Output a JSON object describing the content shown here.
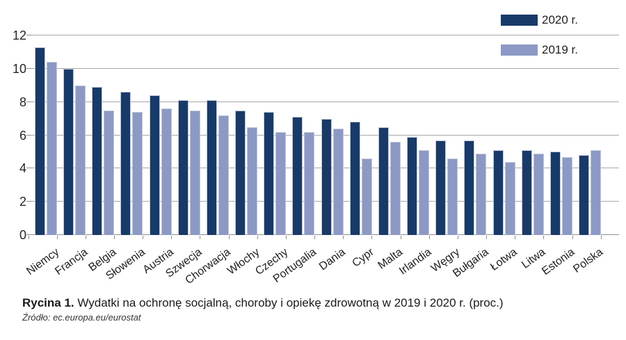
{
  "figure": {
    "caption_label": "Rycina 1.",
    "caption_text": " Wydatki na ochronę socjalną, choroby i opiekę zdrowotną w 2019 i 2020 r. (proc.)",
    "source": "Źródło: ec.europa.eu/eurostat"
  },
  "chart_data": {
    "type": "bar",
    "title": "",
    "xlabel": "",
    "ylabel": "",
    "categories": [
      "Niemcy",
      "Francja",
      "Belgia",
      "Słowenia",
      "Austria",
      "Szwecja",
      "Chorwacja",
      "Włochy",
      "Czechy",
      "Portugalia",
      "Dania",
      "Cypr",
      "Malta",
      "Irlandia",
      "Węgry",
      "Bułgaria",
      "Łotwa",
      "Litwa",
      "Estonia",
      "Polska"
    ],
    "series": [
      {
        "name": "2020 r.",
        "color": "#173A68",
        "values": [
          11.3,
          10.0,
          8.9,
          8.6,
          8.4,
          8.1,
          8.1,
          7.5,
          7.4,
          7.1,
          7.0,
          6.8,
          6.5,
          5.9,
          5.7,
          5.7,
          5.1,
          5.1,
          5.0,
          4.8
        ]
      },
      {
        "name": "2019 r.",
        "color": "#8C99C5",
        "values": [
          10.4,
          9.0,
          7.5,
          7.4,
          7.6,
          7.5,
          7.2,
          6.5,
          6.2,
          6.2,
          6.4,
          4.6,
          5.6,
          5.1,
          4.6,
          4.9,
          4.4,
          4.9,
          4.7,
          5.1
        ]
      }
    ],
    "ylim": [
      0,
      12
    ],
    "yticks": [
      0,
      2,
      4,
      6,
      8,
      10,
      12
    ],
    "grid": true,
    "legend_position": "top-right",
    "gridline_color": "#a8a8a8"
  }
}
